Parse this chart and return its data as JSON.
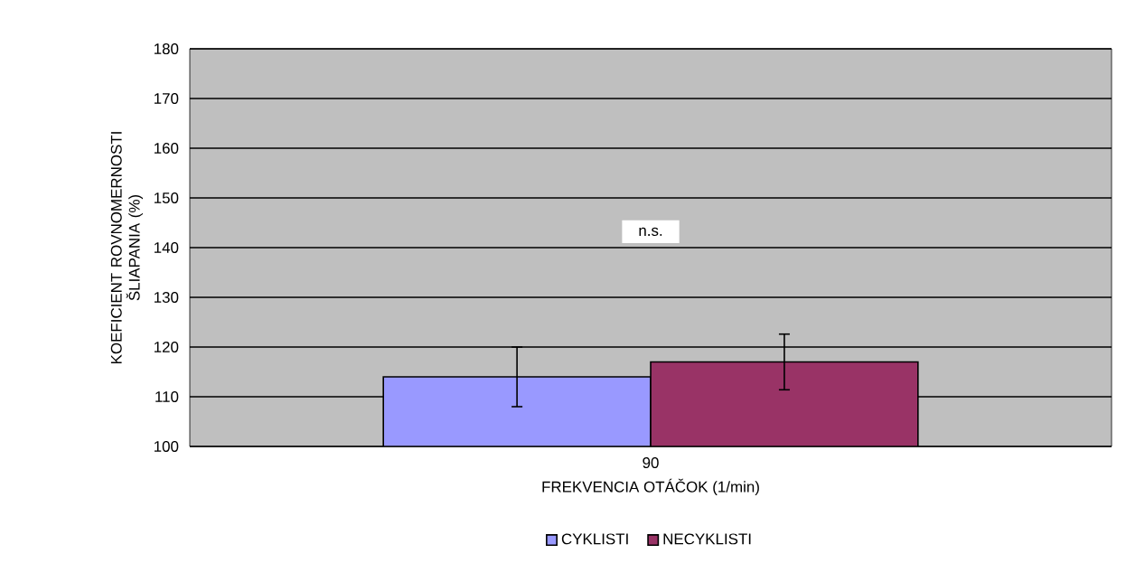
{
  "chart_data": {
    "type": "bar",
    "xlabel": "FREKVENCIA OTÁČOK (1/min)",
    "ylabel": "KOEFICIENT ROVNOMERNOSTI ŠLIAPANIA (%)",
    "categories": [
      "90"
    ],
    "series": [
      {
        "name": "CYKLISTI",
        "color": "#9999ff",
        "values": [
          114
        ],
        "errors": [
          6
        ]
      },
      {
        "name": "NECYKLISTI",
        "color": "#993366",
        "values": [
          117
        ],
        "errors": [
          5.6
        ]
      }
    ],
    "ylim": [
      100,
      180
    ],
    "yticks": [
      100,
      110,
      120,
      130,
      140,
      150,
      160,
      170,
      180
    ],
    "grid": "y",
    "legend": "bottom",
    "annotations": [
      "n.s."
    ]
  }
}
